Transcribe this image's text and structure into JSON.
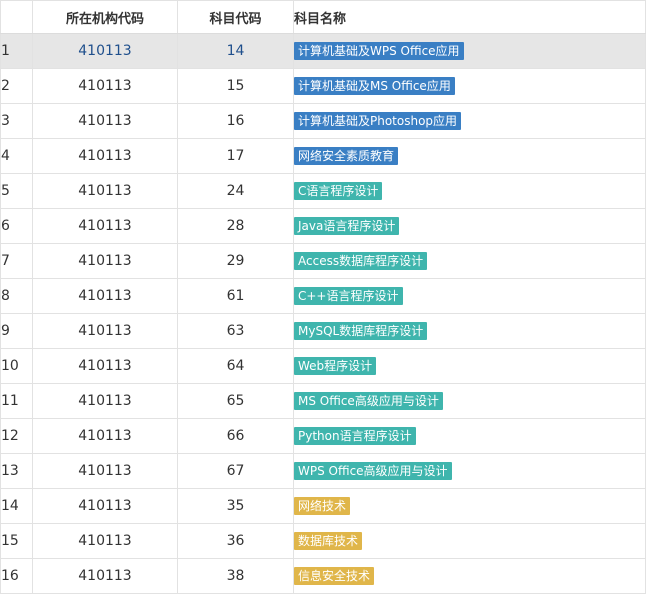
{
  "table": {
    "headers": {
      "index": "",
      "org_code": "所在机构代码",
      "subject_code": "科目代码",
      "subject_name": "科目名称"
    },
    "selected_row": 0,
    "tag_colors": {
      "blue": "#3a7fc4",
      "teal": "#3fb5ad",
      "gold": "#e0b64a"
    },
    "rows": [
      {
        "index": "1",
        "org_code": "410113",
        "subject_code": "14",
        "subject_name": "计算机基础及WPS Office应用",
        "tag": "blue"
      },
      {
        "index": "2",
        "org_code": "410113",
        "subject_code": "15",
        "subject_name": "计算机基础及MS Office应用",
        "tag": "blue"
      },
      {
        "index": "3",
        "org_code": "410113",
        "subject_code": "16",
        "subject_name": "计算机基础及Photoshop应用",
        "tag": "blue"
      },
      {
        "index": "4",
        "org_code": "410113",
        "subject_code": "17",
        "subject_name": "网络安全素质教育",
        "tag": "blue"
      },
      {
        "index": "5",
        "org_code": "410113",
        "subject_code": "24",
        "subject_name": "C语言程序设计",
        "tag": "teal"
      },
      {
        "index": "6",
        "org_code": "410113",
        "subject_code": "28",
        "subject_name": "Java语言程序设计",
        "tag": "teal"
      },
      {
        "index": "7",
        "org_code": "410113",
        "subject_code": "29",
        "subject_name": "Access数据库程序设计",
        "tag": "teal"
      },
      {
        "index": "8",
        "org_code": "410113",
        "subject_code": "61",
        "subject_name": "C++语言程序设计",
        "tag": "teal"
      },
      {
        "index": "9",
        "org_code": "410113",
        "subject_code": "63",
        "subject_name": "MySQL数据库程序设计",
        "tag": "teal"
      },
      {
        "index": "10",
        "org_code": "410113",
        "subject_code": "64",
        "subject_name": "Web程序设计",
        "tag": "teal"
      },
      {
        "index": "11",
        "org_code": "410113",
        "subject_code": "65",
        "subject_name": "MS Office高级应用与设计",
        "tag": "teal"
      },
      {
        "index": "12",
        "org_code": "410113",
        "subject_code": "66",
        "subject_name": "Python语言程序设计",
        "tag": "teal"
      },
      {
        "index": "13",
        "org_code": "410113",
        "subject_code": "67",
        "subject_name": "WPS Office高级应用与设计",
        "tag": "teal"
      },
      {
        "index": "14",
        "org_code": "410113",
        "subject_code": "35",
        "subject_name": "网络技术",
        "tag": "gold"
      },
      {
        "index": "15",
        "org_code": "410113",
        "subject_code": "36",
        "subject_name": "数据库技术",
        "tag": "gold"
      },
      {
        "index": "16",
        "org_code": "410113",
        "subject_code": "38",
        "subject_name": "信息安全技术",
        "tag": "gold"
      }
    ]
  }
}
